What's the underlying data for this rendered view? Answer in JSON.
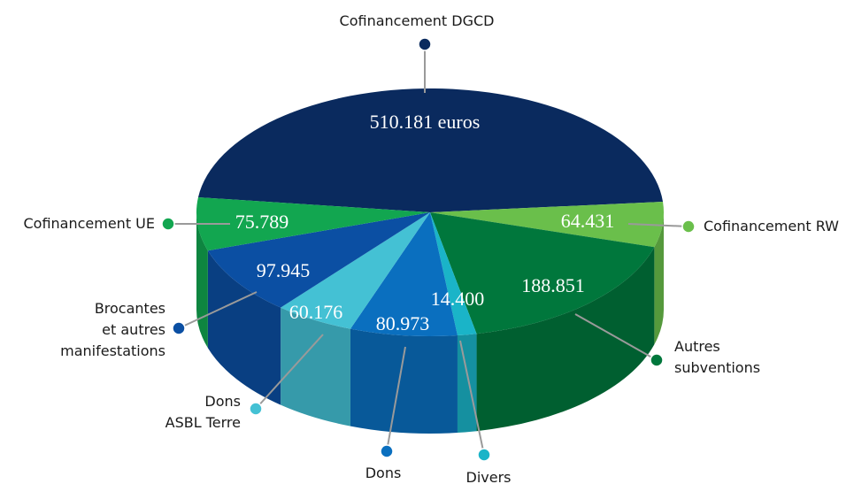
{
  "chart_data": {
    "type": "pie",
    "categories": [
      "Cofinancement DGCD",
      "Cofinancement RW",
      "Autres\nsubventions",
      "Divers",
      "Dons",
      "Dons\nASBL Terre",
      "Brocantes\net autres\nmanifestations",
      "Cofinancement UE"
    ],
    "values": [
      510181,
      64431,
      188851,
      14400,
      80973,
      60176,
      97945,
      75789
    ],
    "value_labels": [
      "510.181 euros",
      "64.431",
      "188.851",
      "14.400",
      "80.973",
      "60.176",
      "97.945",
      "75.789"
    ],
    "colors": [
      "#0a2a5e",
      "#6abf4b",
      "#00773c",
      "#1ab4c8",
      "#0a6fbf",
      "#44c1d4",
      "#0b4fa3",
      "#12a650"
    ]
  }
}
